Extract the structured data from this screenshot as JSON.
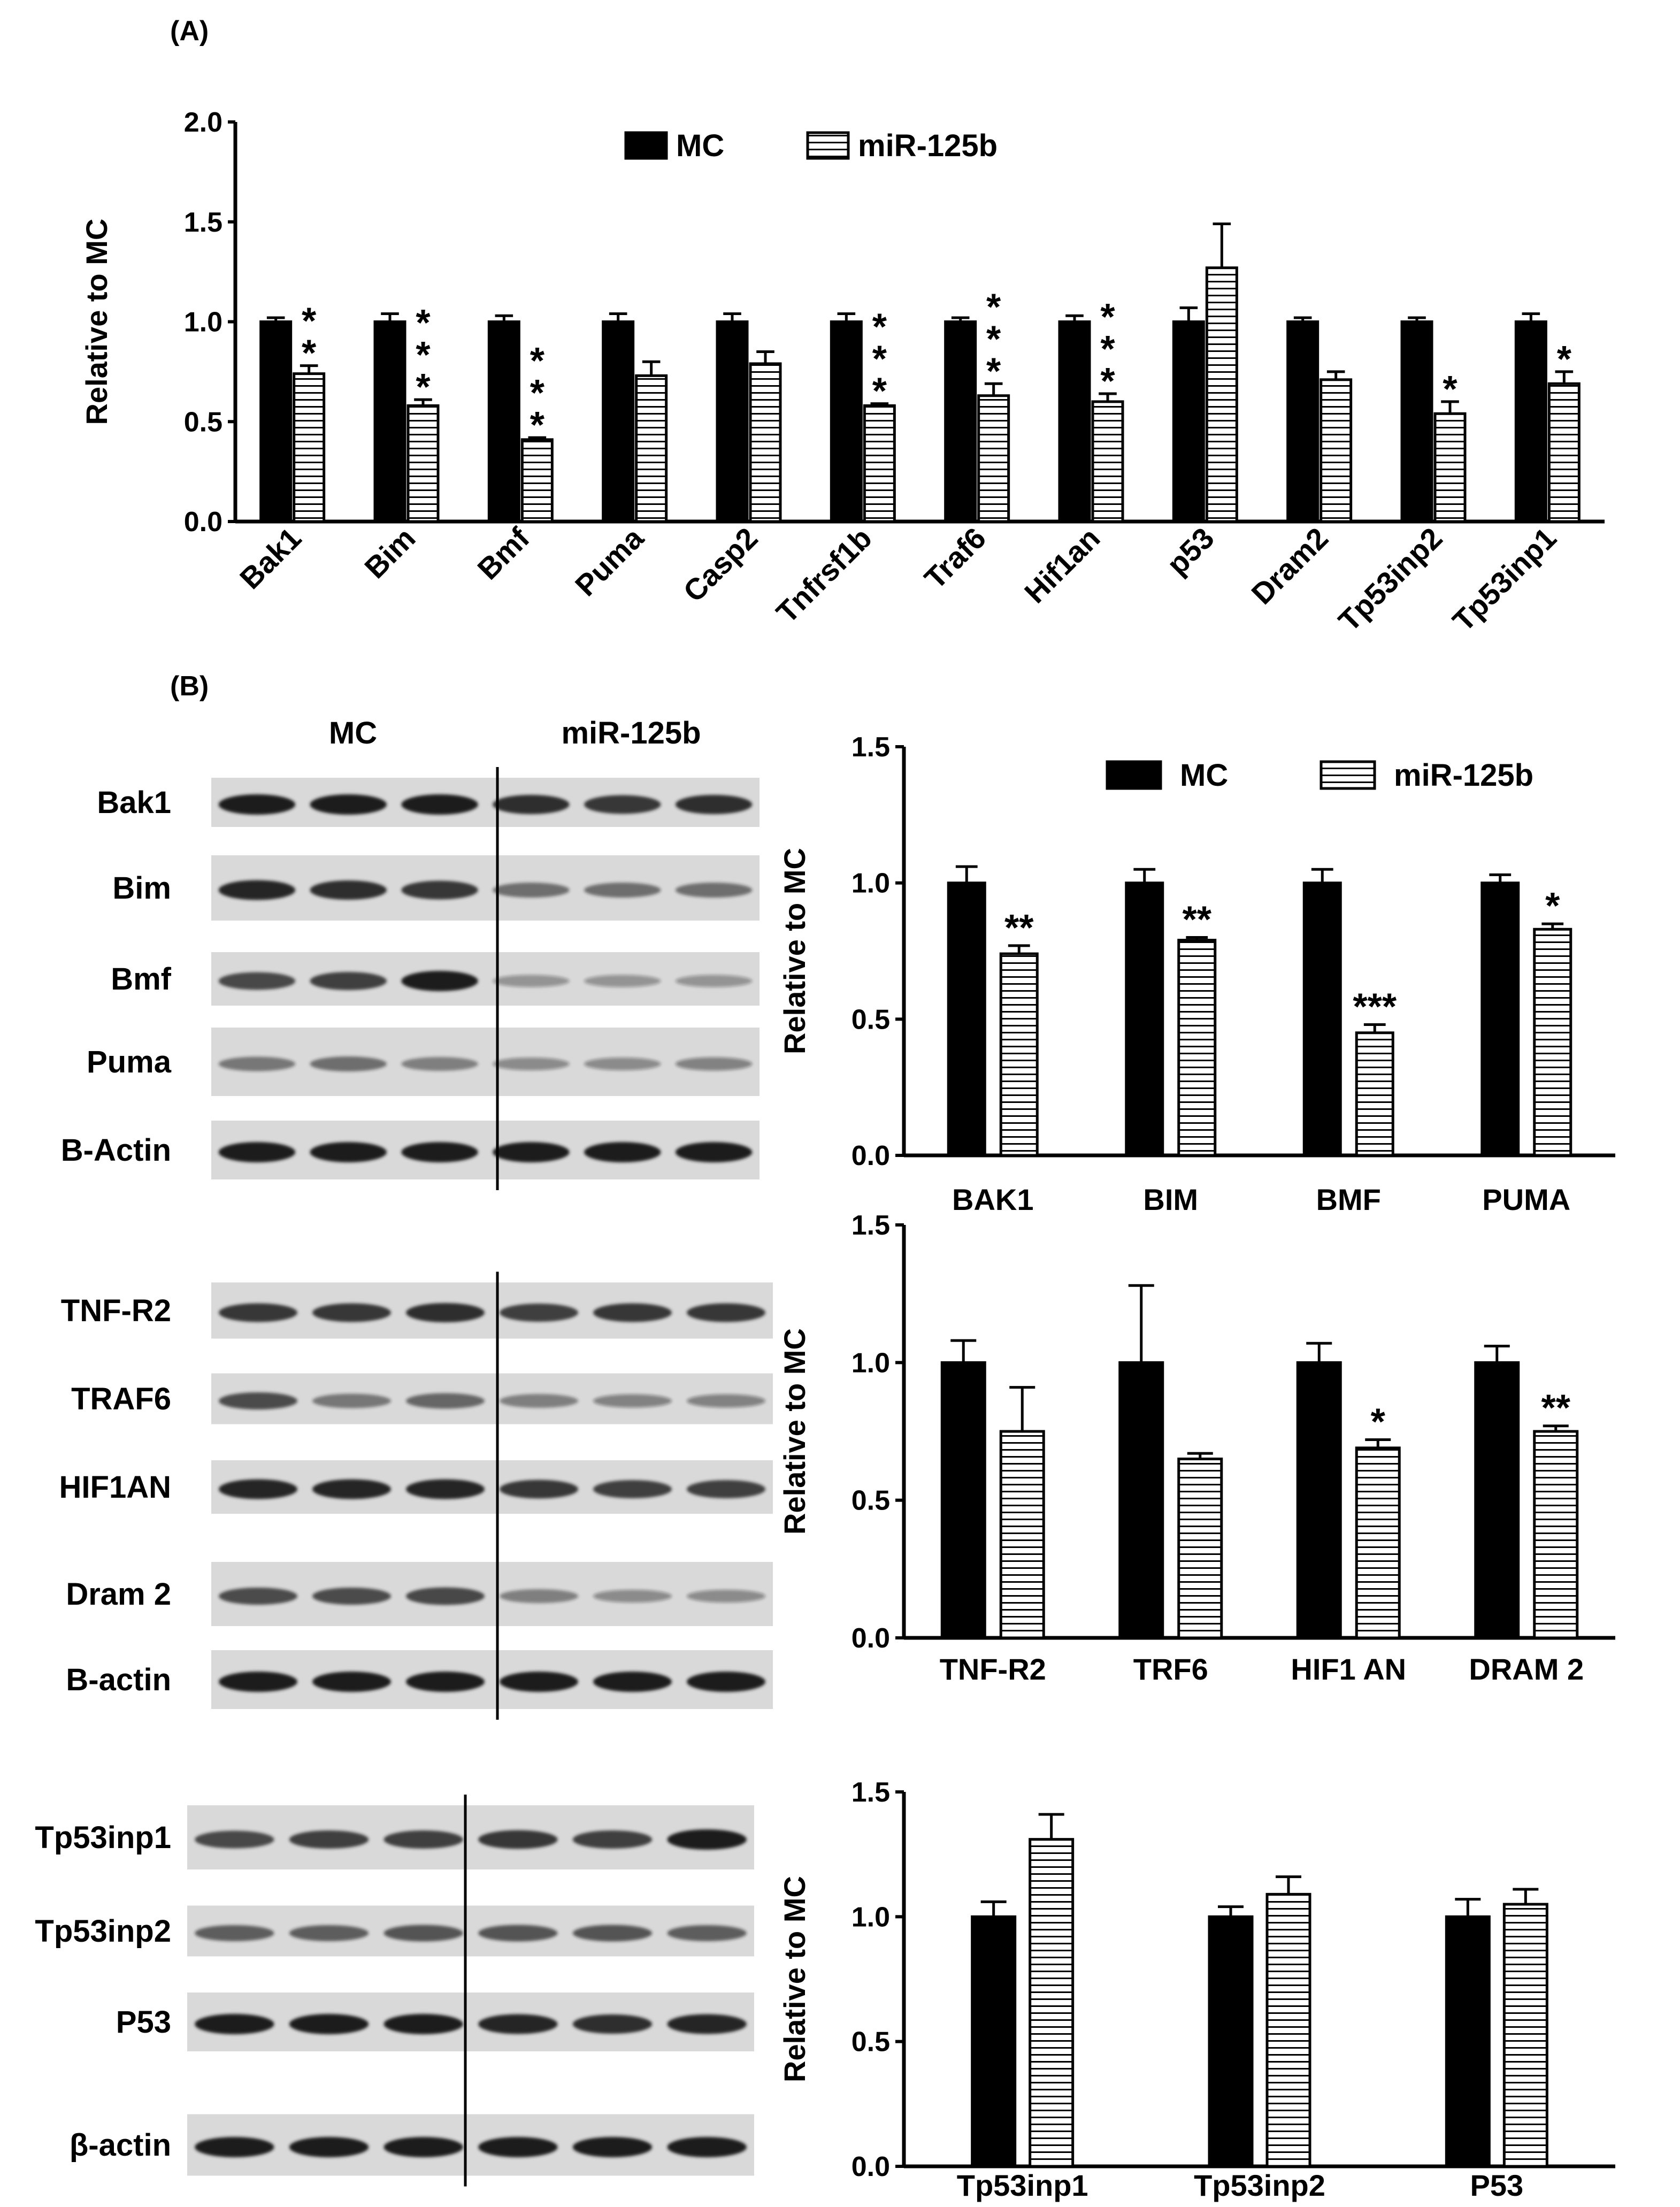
{
  "panels": {
    "a_label": "(A)",
    "b_label": "(B)"
  },
  "colors": {
    "mc": "#000000",
    "mir": "#ffffff",
    "stroke": "#000000",
    "blot_bg": "#d9d9d9",
    "band": "#1e1e1e"
  },
  "chart_data": [
    {
      "type": "bar",
      "title": "",
      "xlabel": "",
      "ylabel": "Relative to MC",
      "ylim": [
        0,
        2.0
      ],
      "yticks": [
        "0.0",
        "0.5",
        "1.0",
        "1.5",
        "2.0"
      ],
      "legend": [
        "MC",
        "miR-125b"
      ],
      "legend_position": "top-center",
      "categories": [
        "Bak1",
        "Bim",
        "Bmf",
        "Puma",
        "Casp2",
        "Tnfrsf1b",
        "Traf6",
        "Hif1an",
        "p53",
        "Dram2",
        "Tp53inp2",
        "Tp53inp1"
      ],
      "series": [
        {
          "name": "MC",
          "values": [
            1.0,
            1.0,
            1.0,
            1.0,
            1.0,
            1.0,
            1.0,
            1.0,
            1.0,
            1.0,
            1.0,
            1.0
          ],
          "errors": [
            0.02,
            0.04,
            0.03,
            0.04,
            0.04,
            0.04,
            0.02,
            0.03,
            0.07,
            0.02,
            0.02,
            0.04
          ]
        },
        {
          "name": "miR-125b",
          "values": [
            0.74,
            0.58,
            0.41,
            0.73,
            0.79,
            0.58,
            0.63,
            0.6,
            1.27,
            0.71,
            0.54,
            0.69
          ],
          "errors": [
            0.04,
            0.03,
            0.01,
            0.07,
            0.06,
            0.01,
            0.06,
            0.04,
            0.22,
            0.04,
            0.06,
            0.06
          ]
        }
      ],
      "significance": [
        "**",
        "***",
        "***",
        "",
        "",
        "***",
        "***",
        "***",
        "",
        "",
        "*",
        "*"
      ]
    },
    {
      "type": "bar",
      "title": "",
      "ylabel": "Relative to MC",
      "ylim": [
        0,
        1.5
      ],
      "yticks": [
        "0.0",
        "0.5",
        "1.0",
        "1.5"
      ],
      "legend": [
        "MC",
        "miR-125b"
      ],
      "legend_position": "top-right",
      "categories": [
        "BAK1",
        "BIM",
        "BMF",
        "PUMA"
      ],
      "series": [
        {
          "name": "MC",
          "values": [
            1.0,
            1.0,
            1.0,
            1.0
          ],
          "errors": [
            0.06,
            0.05,
            0.05,
            0.03
          ]
        },
        {
          "name": "miR-125b",
          "values": [
            0.74,
            0.79,
            0.45,
            0.83
          ],
          "errors": [
            0.03,
            0.01,
            0.03,
            0.02
          ]
        }
      ],
      "significance": [
        "**",
        "**",
        "***",
        "*"
      ]
    },
    {
      "type": "bar",
      "title": "",
      "ylabel": "Relative to MC",
      "ylim": [
        0,
        1.5
      ],
      "yticks": [
        "0.0",
        "0.5",
        "1.0",
        "1.5"
      ],
      "legend": [],
      "categories": [
        "TNF-R2",
        "TRF6",
        "HIF1 AN",
        "DRAM 2"
      ],
      "series": [
        {
          "name": "MC",
          "values": [
            1.0,
            1.0,
            1.0,
            1.0
          ],
          "errors": [
            0.08,
            0.28,
            0.07,
            0.06
          ]
        },
        {
          "name": "miR-125b",
          "values": [
            0.75,
            0.65,
            0.69,
            0.75
          ],
          "errors": [
            0.16,
            0.02,
            0.03,
            0.02
          ]
        }
      ],
      "significance": [
        "",
        "",
        "*",
        "**"
      ]
    },
    {
      "type": "bar",
      "title": "",
      "ylabel": "Relative to MC",
      "ylim": [
        0,
        1.5
      ],
      "yticks": [
        "0.0",
        "0.5",
        "1.0",
        "1.5"
      ],
      "legend": [],
      "categories": [
        "Tp53inp1",
        "Tp53inp2",
        "P53"
      ],
      "series": [
        {
          "name": "MC",
          "values": [
            1.0,
            1.0,
            1.0
          ],
          "errors": [
            0.06,
            0.04,
            0.07
          ]
        },
        {
          "name": "miR-125b",
          "values": [
            1.31,
            1.09,
            1.05
          ],
          "errors": [
            0.1,
            0.07,
            0.06
          ]
        }
      ],
      "significance": [
        "",
        "",
        ""
      ]
    }
  ],
  "blots": [
    {
      "groups": [
        "MC",
        "miR-125b"
      ],
      "rows": [
        "Bak1",
        "Bim",
        "Bmf",
        "Puma",
        "B-Actin"
      ],
      "intensity": [
        [
          1.0,
          1.0,
          1.0,
          0.9,
          0.85,
          0.9
        ],
        [
          0.95,
          0.9,
          0.85,
          0.5,
          0.5,
          0.5
        ],
        [
          0.75,
          0.8,
          1.0,
          0.25,
          0.25,
          0.25
        ],
        [
          0.45,
          0.5,
          0.4,
          0.3,
          0.3,
          0.35
        ],
        [
          1.0,
          1.0,
          1.0,
          1.0,
          1.0,
          1.0
        ]
      ]
    },
    {
      "groups": [],
      "rows": [
        "TNF-R2",
        "TRAF6",
        "HIF1AN",
        "Dram 2",
        "B-actin"
      ],
      "intensity": [
        [
          0.85,
          0.85,
          0.9,
          0.8,
          0.85,
          0.85
        ],
        [
          0.7,
          0.45,
          0.55,
          0.4,
          0.35,
          0.35
        ],
        [
          0.95,
          0.95,
          0.95,
          0.85,
          0.8,
          0.8
        ],
        [
          0.7,
          0.7,
          0.75,
          0.4,
          0.3,
          0.3
        ],
        [
          1.0,
          1.0,
          1.0,
          1.0,
          1.0,
          1.0
        ]
      ]
    },
    {
      "groups": [],
      "rows": [
        "Tp53inp1",
        "Tp53inp2",
        "P53",
        "β-actin"
      ],
      "intensity": [
        [
          0.75,
          0.8,
          0.8,
          0.85,
          0.8,
          1.0
        ],
        [
          0.6,
          0.6,
          0.65,
          0.65,
          0.65,
          0.6
        ],
        [
          1.0,
          1.0,
          1.0,
          0.95,
          0.9,
          0.95
        ],
        [
          1.0,
          1.0,
          1.0,
          1.0,
          1.0,
          1.0
        ]
      ]
    }
  ]
}
